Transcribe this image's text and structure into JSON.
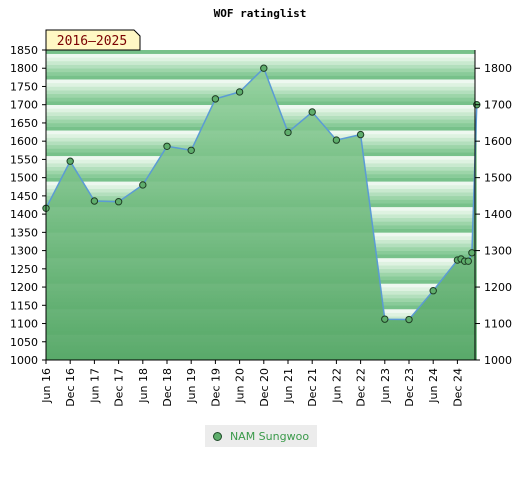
{
  "chart_data": {
    "type": "line",
    "title": "WOF ratinglist",
    "badge": "2016–2025",
    "ylim": [
      1000,
      1850
    ],
    "y_left_ticks": [
      1000,
      1050,
      1100,
      1150,
      1200,
      1250,
      1300,
      1350,
      1400,
      1450,
      1500,
      1550,
      1600,
      1650,
      1700,
      1750,
      1800,
      1850
    ],
    "y_right_ticks": [
      1000,
      1100,
      1200,
      1300,
      1400,
      1500,
      1600,
      1700,
      1800
    ],
    "x_labels": [
      "Jun 16",
      "Dec 16",
      "Jun 17",
      "Dec 17",
      "Jun 18",
      "Dec 18",
      "Jun 19",
      "Dec 19",
      "Jun 20",
      "Dec 20",
      "Jun 21",
      "Dec 21",
      "Jun 22",
      "Dec 22",
      "Jun 23",
      "Dec 23",
      "Jun 24",
      "Dec 24"
    ],
    "series": [
      {
        "name": "NAM Sungwoo",
        "points": [
          {
            "x": 0,
            "y": 1416
          },
          {
            "x": 1,
            "y": 1545
          },
          {
            "x": 2,
            "y": 1436
          },
          {
            "x": 3,
            "y": 1434
          },
          {
            "x": 4,
            "y": 1480
          },
          {
            "x": 5,
            "y": 1586
          },
          {
            "x": 6,
            "y": 1575
          },
          {
            "x": 7,
            "y": 1716
          },
          {
            "x": 8,
            "y": 1735
          },
          {
            "x": 9,
            "y": 1800
          },
          {
            "x": 10,
            "y": 1624
          },
          {
            "x": 11,
            "y": 1680
          },
          {
            "x": 12,
            "y": 1603
          },
          {
            "x": 13,
            "y": 1618
          },
          {
            "x": 14,
            "y": 1112
          },
          {
            "x": 15,
            "y": 1111
          },
          {
            "x": 16,
            "y": 1190
          },
          {
            "x": 17,
            "y": 1274
          },
          {
            "x": 17.15,
            "y": 1277
          },
          {
            "x": 17.3,
            "y": 1271
          },
          {
            "x": 17.45,
            "y": 1271
          },
          {
            "x": 17.6,
            "y": 1294
          },
          {
            "x": 17.8,
            "y": 1700
          }
        ]
      }
    ]
  },
  "legend": {
    "label": "NAM Sungwoo"
  }
}
